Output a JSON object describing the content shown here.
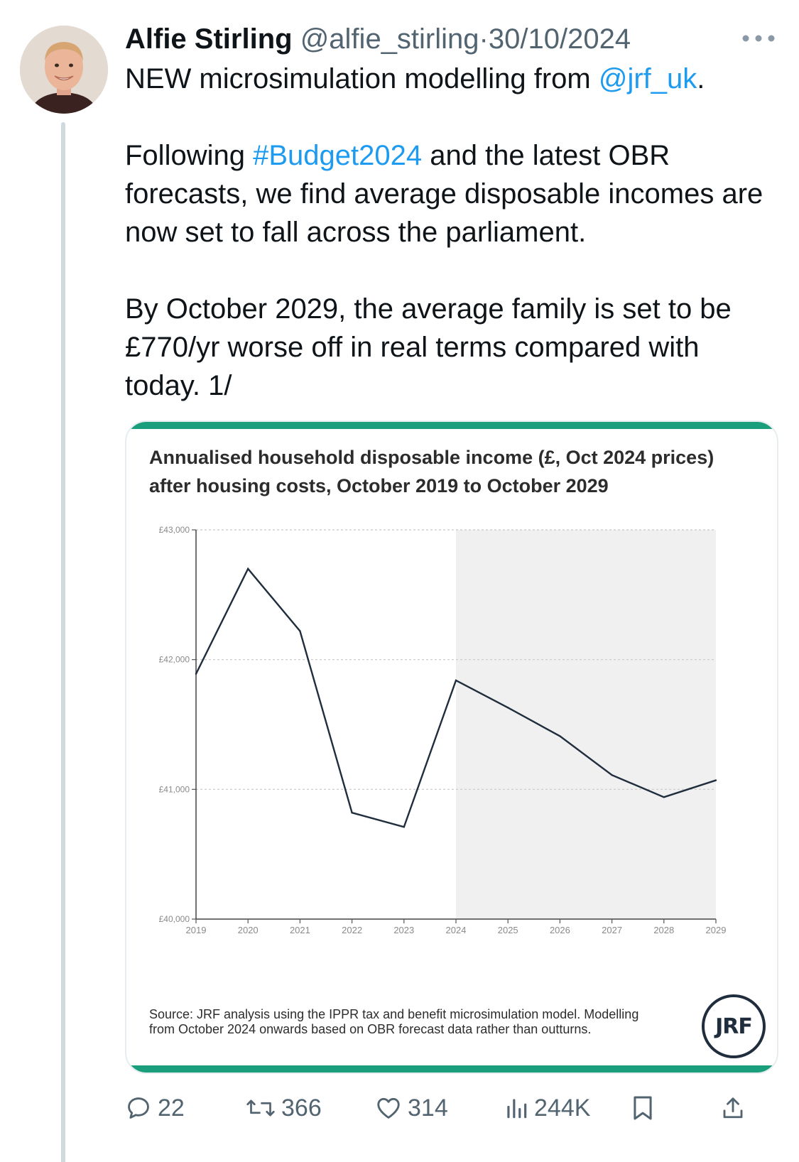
{
  "author": {
    "name": "Alfie Stirling",
    "handle": "@alfie_stirling",
    "separator": "·",
    "date": "30/10/2024"
  },
  "tweet": {
    "p1_before": "NEW microsimulation modelling from ",
    "p1_mention": "@jrf_uk",
    "p1_after": ".",
    "p2_before": "Following ",
    "p2_hashtag": "#Budget2024",
    "p2_after": " and the latest OBR forecasts, we find average disposable incomes are now set to fall across the parliament.",
    "p3": "By October 2029, the average family is set to be £770/yr worse off in real terms compared with today. 1/"
  },
  "media": {
    "title": "Annualised household disposable income (£, Oct 2024 prices) after housing costs, October 2019 to October 2029",
    "source": "Source: JRF analysis using the IPPR tax and benefit microsimulation model. Modelling from October 2024 onwards based on OBR forecast data rather than outturns.",
    "logo_text": "JRF",
    "accent_color": "#1b9e7b"
  },
  "chart_data": {
    "type": "line",
    "title": "Annualised household disposable income (£, Oct 2024 prices) after housing costs, October 2019 to October 2029",
    "x": [
      2019,
      2020,
      2021,
      2022,
      2023,
      2024,
      2025,
      2026,
      2027,
      2028,
      2029
    ],
    "series": [
      {
        "values": [
          41890,
          42700,
          42220,
          40820,
          40710,
          41840,
          41630,
          41410,
          41110,
          40940,
          41070
        ]
      }
    ],
    "ylim": [
      40000,
      43000
    ],
    "yticks": [
      40000,
      41000,
      42000,
      43000
    ],
    "ytick_labels": [
      "£40,000",
      "£41,000",
      "£42,000",
      "£43,000"
    ],
    "forecast_shading_from": 2024,
    "grid": "horizontal dotted",
    "line_color": "#1f2d3d",
    "shade_color": "#f0f0f0"
  },
  "actions": {
    "replies": "22",
    "reposts": "366",
    "likes": "314",
    "views": "244K"
  }
}
